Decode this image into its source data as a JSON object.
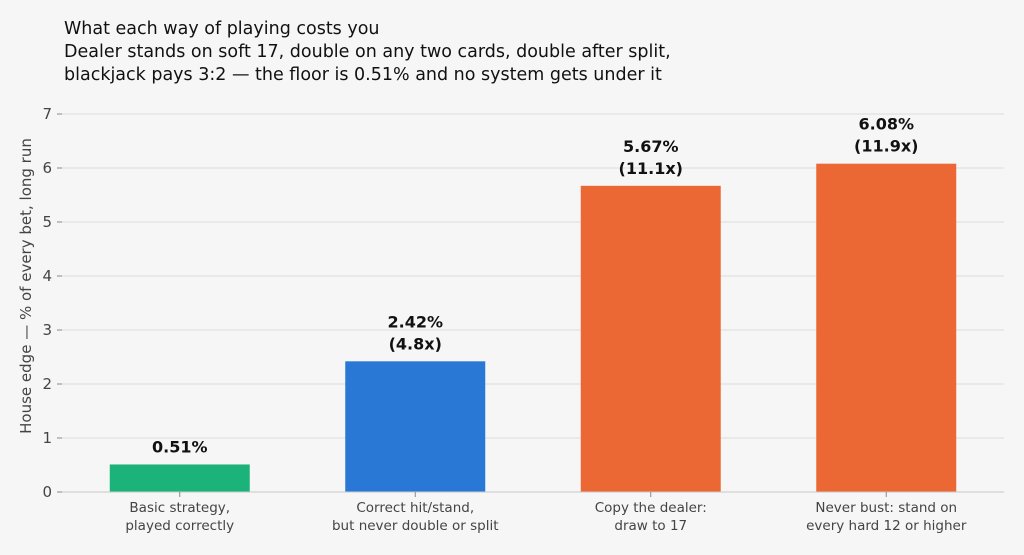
{
  "chart_data": {
    "type": "bar",
    "title_lines": [
      "What each way of playing costs you",
      "Dealer stands on soft 17, double on any two cards, double after split,",
      "blackjack pays 3:2 — the floor is 0.51% and no system gets under it"
    ],
    "ylabel": "House edge — % of every bet, long run",
    "xlabel": "",
    "ylim": [
      0,
      7
    ],
    "yticks": [
      0,
      1,
      2,
      3,
      4,
      5,
      6,
      7
    ],
    "grid": true,
    "categories": [
      [
        "Basic strategy,",
        "played correctly"
      ],
      [
        "Correct hit/stand,",
        "but never double or split"
      ],
      [
        "Copy the dealer:",
        "draw to 17"
      ],
      [
        "Never bust: stand on",
        "every hard 12 or higher"
      ]
    ],
    "values": [
      0.51,
      2.42,
      5.67,
      6.08
    ],
    "data_labels": [
      [
        "0.51%"
      ],
      [
        "2.42%",
        "(4.8x)"
      ],
      [
        "5.67%",
        "(11.1x)"
      ],
      [
        "6.08%",
        "(11.9x)"
      ]
    ],
    "colors": [
      "#1bb37a",
      "#2a78d6",
      "#eb6834",
      "#eb6834"
    ]
  }
}
